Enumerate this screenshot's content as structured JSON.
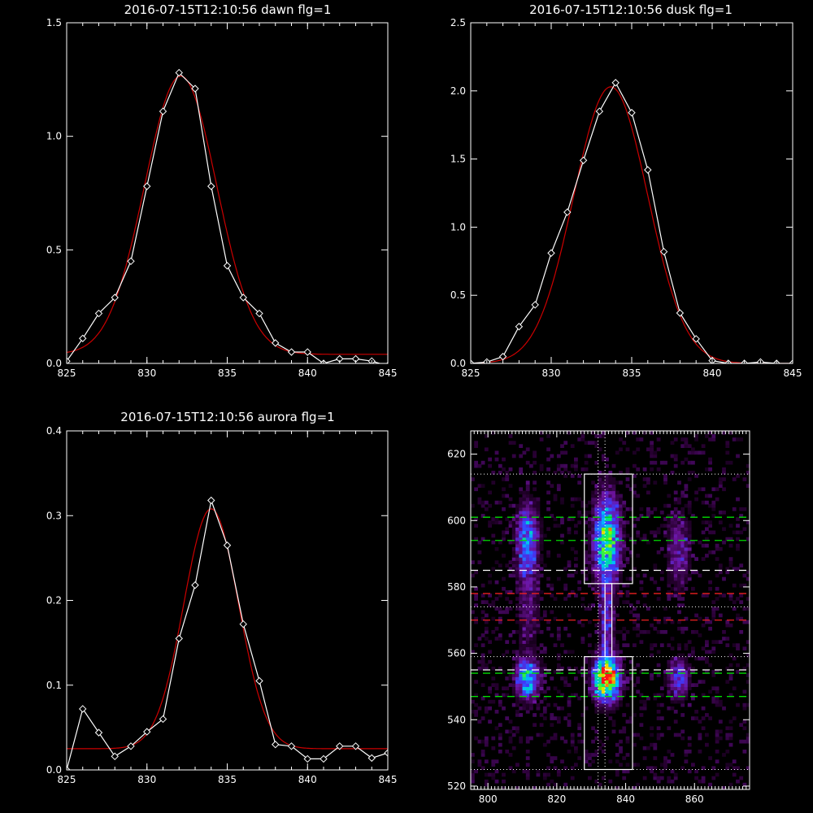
{
  "chart_data": [
    {
      "type": "line",
      "title": "2016-07-15T12:10:56 dawn flg=1",
      "xlim": [
        825,
        845
      ],
      "ylim": [
        0,
        1.5
      ],
      "xticks": [
        825,
        830,
        835,
        840,
        845
      ],
      "yticks": [
        0.0,
        0.5,
        1.0,
        1.5
      ],
      "ytick_labels": [
        "0.0",
        "0.5",
        "1.0",
        "1.5"
      ],
      "series": [
        {
          "x": [
            825,
            826,
            827,
            828,
            829,
            830,
            831,
            832,
            833,
            834,
            835,
            836,
            837,
            838,
            839,
            840,
            841,
            842,
            843,
            844,
            845
          ],
          "values": [
            0.01,
            0.11,
            0.22,
            0.29,
            0.45,
            0.78,
            1.11,
            1.28,
            1.21,
            0.78,
            0.43,
            0.29,
            0.22,
            0.09,
            0.05,
            0.05,
            0.0,
            0.02,
            0.02,
            0.01,
            -0.01
          ],
          "color": "#ffffff",
          "markers": true
        },
        {
          "fit": {
            "amp": 1.225,
            "center": 832.1,
            "sigma": 2.25,
            "offset": 0.04
          },
          "color": "#cc0000"
        }
      ]
    },
    {
      "type": "line",
      "title": "2016-07-15T12:10:56 dusk flg=1",
      "xlim": [
        825,
        845
      ],
      "ylim": [
        0,
        2.5
      ],
      "xticks": [
        825,
        830,
        835,
        840,
        845
      ],
      "yticks": [
        0.0,
        0.5,
        1.0,
        1.5,
        2.0,
        2.5
      ],
      "ytick_labels": [
        "0.0",
        "0.5",
        "1.0",
        "1.5",
        "2.0",
        "2.5"
      ],
      "series": [
        {
          "x": [
            825,
            826,
            827,
            828,
            829,
            830,
            831,
            832,
            833,
            834,
            835,
            836,
            837,
            838,
            839,
            840,
            841,
            842,
            843,
            844,
            845
          ],
          "values": [
            0.0,
            0.01,
            0.05,
            0.27,
            0.43,
            0.81,
            1.11,
            1.49,
            1.85,
            2.06,
            1.84,
            1.42,
            0.82,
            0.37,
            0.18,
            0.02,
            0.0,
            0.0,
            0.01,
            0.0,
            0.0
          ],
          "color": "#ffffff",
          "markers": true
        },
        {
          "fit": {
            "amp": 2.03,
            "center": 833.7,
            "sigma": 2.3,
            "offset": 0.0
          },
          "color": "#cc0000"
        }
      ]
    },
    {
      "type": "line",
      "title": "2016-07-15T12:10:56 aurora flg=1",
      "xlim": [
        825,
        845
      ],
      "ylim": [
        0,
        0.4
      ],
      "xticks": [
        825,
        830,
        835,
        840,
        845
      ],
      "yticks": [
        0.0,
        0.1,
        0.2,
        0.3,
        0.4
      ],
      "ytick_labels": [
        "0.0",
        "0.1",
        "0.2",
        "0.3",
        "0.4"
      ],
      "series": [
        {
          "x": [
            825,
            826,
            827,
            828,
            829,
            830,
            831,
            832,
            833,
            834,
            835,
            836,
            837,
            838,
            839,
            840,
            841,
            842,
            843,
            844,
            845
          ],
          "values": [
            0.0,
            0.072,
            0.044,
            0.016,
            0.028,
            0.045,
            0.06,
            0.155,
            0.218,
            0.318,
            0.265,
            0.172,
            0.105,
            0.03,
            0.028,
            0.013,
            0.013,
            0.028,
            0.028,
            0.014,
            0.02
          ],
          "color": "#ffffff",
          "markers": true
        },
        {
          "fit": {
            "amp": 0.283,
            "center": 834.0,
            "sigma": 1.7,
            "offset": 0.025
          },
          "color": "#cc0000"
        }
      ]
    },
    {
      "type": "heatmap",
      "title": "",
      "xlim": [
        795,
        876
      ],
      "ylim": [
        519,
        627
      ],
      "xticks": [
        800,
        820,
        840,
        860
      ],
      "yticks": [
        520,
        540,
        560,
        580,
        600,
        620
      ],
      "blobs": [
        {
          "x": 811,
          "y": 593,
          "sx": 2.2,
          "sy": 8,
          "amp": 0.45
        },
        {
          "x": 811,
          "y": 552,
          "sx": 2.2,
          "sy": 4,
          "amp": 0.62
        },
        {
          "x": 834,
          "y": 594,
          "sx": 2.5,
          "sy": 9,
          "amp": 0.72
        },
        {
          "x": 834,
          "y": 552,
          "sx": 2.5,
          "sy": 4.5,
          "amp": 1.0
        },
        {
          "x": 834,
          "y": 568,
          "sx": 1.5,
          "sy": 8,
          "amp": 0.28
        },
        {
          "x": 855,
          "y": 591,
          "sx": 2.2,
          "sy": 8,
          "amp": 0.25
        },
        {
          "x": 855,
          "y": 552,
          "sx": 2.2,
          "sy": 4,
          "amp": 0.35
        },
        {
          "x": 811,
          "y": 572,
          "sx": 2.5,
          "sy": 8,
          "amp": 0.15
        }
      ],
      "boxes": [
        {
          "x0": 828,
          "x1": 842,
          "y0": 581,
          "y1": 614
        },
        {
          "x0": 828,
          "x1": 842,
          "y0": 525,
          "y1": 559
        },
        {
          "x0": 834,
          "x1": 836,
          "y0": 559,
          "y1": 581
        }
      ],
      "hlines_dotted": [
        614,
        559,
        525,
        574
      ],
      "vlines_dotted": [
        832,
        834
      ],
      "hlines_dashed": [
        {
          "y": 601,
          "color": "#00dd00"
        },
        {
          "y": 594,
          "color": "#00dd00"
        },
        {
          "y": 585,
          "color": "#ffffff"
        },
        {
          "y": 578,
          "color": "#ee2020"
        },
        {
          "y": 570,
          "color": "#ee2020"
        },
        {
          "y": 555,
          "color": "#ffffff"
        },
        {
          "y": 554,
          "color": "#00dd00"
        },
        {
          "y": 547,
          "color": "#00dd00"
        }
      ]
    }
  ]
}
